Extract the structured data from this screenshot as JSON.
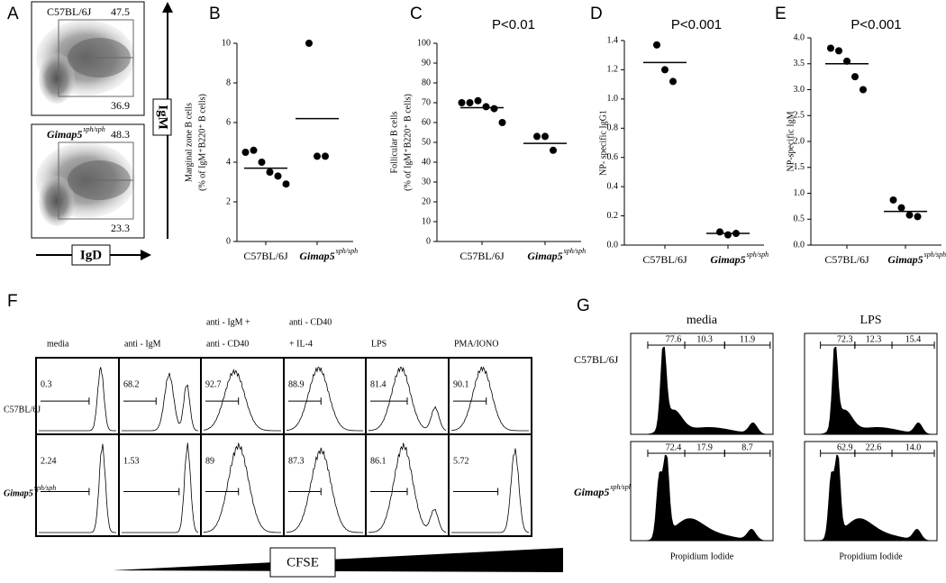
{
  "panel_a": {
    "letter": "A",
    "plots": [
      {
        "label": "C57BL/6J",
        "top": "47.5",
        "bottom": "36.9"
      },
      {
        "label": "Gimap5",
        "superscript": "sph/sph",
        "top": "48.3",
        "bottom": "23.3"
      }
    ],
    "y_axis": "IgM",
    "x_axis": "IgD"
  },
  "chart_data": [
    {
      "type": "dot",
      "letter": "B",
      "ylabel": [
        "Marginal zone B cells",
        "(% of IgM⁺B220⁺ B cells)"
      ],
      "categories": [
        {
          "label": "C57BL/6J"
        },
        {
          "label": "Gimap5",
          "superscript": "sph/sph"
        }
      ],
      "values": [
        [
          4.5,
          4.6,
          4.0,
          3.5,
          3.3,
          2.9
        ],
        [
          10,
          4.3,
          4.3
        ]
      ],
      "means": [
        3.7,
        6.2
      ],
      "ylim": [
        0,
        10
      ],
      "yticks": [
        0,
        2,
        4,
        6,
        8,
        10
      ]
    },
    {
      "type": "dot",
      "letter": "C",
      "title": "P<0.01",
      "ylabel": [
        "Follicular B cells",
        "(% of IgM⁺B220⁺ B cells)"
      ],
      "categories": [
        {
          "label": "C57BL/6J"
        },
        {
          "label": "Gimap5",
          "superscript": "sph/sph"
        }
      ],
      "values": [
        [
          70,
          70,
          71,
          68,
          67,
          60
        ],
        [
          53,
          53,
          46
        ]
      ],
      "means": [
        67.5,
        49.5
      ],
      "ylim": [
        0,
        100
      ],
      "yticks": [
        0,
        10,
        20,
        30,
        40,
        50,
        60,
        70,
        80,
        90,
        100
      ]
    },
    {
      "type": "dot",
      "letter": "D",
      "title": "P<0.001",
      "ylabel": [
        "NP- specific IgG1"
      ],
      "categories": [
        {
          "label": "C57BL/6J"
        },
        {
          "label": "Gimap5",
          "superscript": "sph/sph"
        }
      ],
      "values": [
        [
          1.37,
          1.2,
          1.12
        ],
        [
          0.09,
          0.07,
          0.08
        ]
      ],
      "means": [
        1.25,
        0.08
      ],
      "ylim": [
        0,
        1.4
      ],
      "yticks": [
        {
          "value": 0,
          "label": "0.0"
        },
        0.2,
        0.4,
        0.6,
        0.8,
        {
          "value": 1,
          "label": "1.0"
        },
        1.2,
        1.4
      ]
    },
    {
      "type": "dot",
      "letter": "E",
      "title": "P<0.001",
      "ylabel": [
        "NP-specific IgM"
      ],
      "categories": [
        {
          "label": "C57BL/6J"
        },
        {
          "label": "Gimap5",
          "superscript": "sph/sph"
        }
      ],
      "values": [
        [
          3.8,
          3.75,
          3.55,
          3.25,
          3.0
        ],
        [
          0.87,
          0.72,
          0.58,
          0.55
        ]
      ],
      "means": [
        3.5,
        0.65
      ],
      "ylim": [
        0,
        4
      ],
      "yticks": [
        {
          "value": 0,
          "label": "0.0"
        },
        0.5,
        {
          "value": 1,
          "label": "1.0"
        },
        1.5,
        {
          "value": 2,
          "label": "2.0"
        },
        2.5,
        {
          "value": 3,
          "label": "3.0"
        },
        3.5,
        {
          "value": 4,
          "label": "4.0"
        }
      ]
    }
  ],
  "panel_f": {
    "letter": "F",
    "columns": [
      [
        "media"
      ],
      [
        "anti - IgM"
      ],
      [
        "anti - IgM +",
        "anti - CD40"
      ],
      [
        "anti - CD40",
        "+ IL-4"
      ],
      [
        "LPS"
      ],
      [
        "PMA/IONO"
      ]
    ],
    "rows": [
      {
        "label": "C57BL/6J",
        "values": [
          "0.3",
          "68.2",
          "92.7",
          "88.9",
          "81.4",
          "90.1"
        ]
      },
      {
        "label": "Gimap5",
        "superscript": "sph/sph",
        "values": [
          "2.24",
          "1.53",
          "89",
          "87.3",
          "86.1",
          "5.72"
        ]
      }
    ],
    "x_axis": "CFSE"
  },
  "panel_g": {
    "letter": "G",
    "columns": [
      "media",
      "LPS"
    ],
    "rows": [
      {
        "label": "C57BL/6J",
        "cells": [
          [
            "77.6",
            "10.3",
            "11.9"
          ],
          [
            "72.3",
            "12.3",
            "15.4"
          ]
        ]
      },
      {
        "label": "Gimap5",
        "superscript": "sph/sph",
        "cells": [
          [
            "72.4",
            "17.9",
            "8.7"
          ],
          [
            "62.9",
            "22.6",
            "14.0"
          ]
        ]
      }
    ],
    "x_axis_labels": [
      "Propidium Iodide",
      "Propidium Iodide"
    ]
  }
}
